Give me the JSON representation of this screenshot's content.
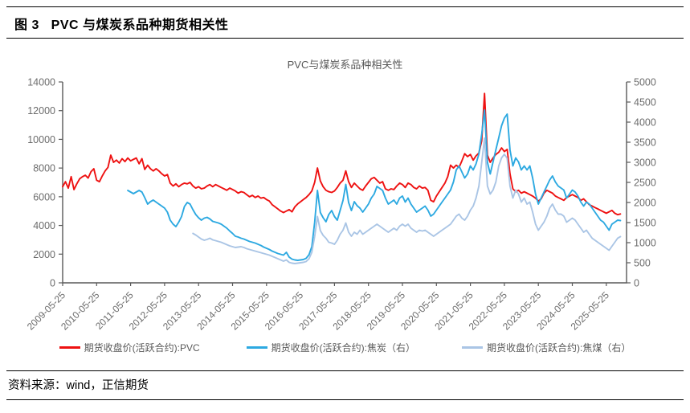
{
  "page": {
    "header_title": "图 3   PVC 与煤炭系品种期货相关性",
    "source_label": "资料来源：wind，正信期货"
  },
  "chart_data": {
    "type": "line",
    "title": "PVC与煤炭系品种相关性",
    "grid": false,
    "legend_position": "bottom",
    "x_ticks": [
      "2009-05-25",
      "2010-05-25",
      "2011-05-25",
      "2012-05-25",
      "2013-05-25",
      "2014-05-25",
      "2015-05-25",
      "2016-05-25",
      "2017-05-25",
      "2018-05-25",
      "2019-05-25",
      "2020-05-25",
      "2021-05-25",
      "2022-05-25",
      "2023-05-25",
      "2024-05-25",
      "2025-05-25"
    ],
    "left_axis": {
      "min": 0,
      "max": 14000,
      "step": 2000
    },
    "right_axis": {
      "min": 0,
      "max": 5000,
      "step": 500
    },
    "colors": {
      "pvc": "#ee1111",
      "coke": "#2da9e1",
      "coking_coal": "#aac5e5",
      "axis": "#595959",
      "tick_text": "#6b6b6b"
    },
    "series": [
      {
        "name": "期货收盘价(活跃合约):PVC",
        "axis": "left",
        "color": "#ee1111",
        "start": "2009-05",
        "frequency": "monthly",
        "values": [
          6700,
          7050,
          6600,
          7400,
          6500,
          6900,
          7250,
          7400,
          7500,
          7300,
          7750,
          7950,
          7150,
          7050,
          7450,
          7800,
          8050,
          8900,
          8400,
          8550,
          8350,
          8650,
          8450,
          8700,
          8500,
          8600,
          8700,
          8300,
          8650,
          7900,
          8200,
          7950,
          7800,
          7950,
          7800,
          7600,
          7450,
          7550,
          6950,
          6750,
          6900,
          6700,
          6850,
          6950,
          6900,
          7000,
          6750,
          6600,
          6700,
          6550,
          6600,
          6750,
          6850,
          6700,
          6850,
          6750,
          6650,
          6550,
          6450,
          6600,
          6500,
          6400,
          6250,
          6350,
          6300,
          6150,
          6000,
          6100,
          5950,
          6050,
          5900,
          5950,
          5800,
          5700,
          5450,
          5300,
          5150,
          5000,
          4900,
          5000,
          5100,
          4950,
          5300,
          5500,
          5650,
          5800,
          5950,
          6150,
          6400,
          7000,
          8000,
          7100,
          6700,
          6450,
          6350,
          6300,
          6400,
          6650,
          6950,
          7150,
          7800,
          7050,
          6650,
          6950,
          6750,
          6550,
          6450,
          6750,
          7000,
          7250,
          7350,
          7150,
          6950,
          7050,
          6550,
          6450,
          6550,
          6500,
          6750,
          6950,
          6850,
          6650,
          6950,
          6850,
          6650,
          6550,
          6750,
          6600,
          6650,
          6450,
          5750,
          5650,
          6050,
          6350,
          6650,
          6950,
          7400,
          8200,
          8000,
          8200,
          8050,
          8500,
          9000,
          8800,
          8950,
          8550,
          8850,
          9050,
          9900,
          13200,
          8900,
          8400,
          8700,
          8950,
          9100,
          9400,
          9150,
          9300,
          7600,
          6550,
          6350,
          6450,
          6250,
          6350,
          6250,
          6150,
          6050,
          5900,
          5700,
          5850,
          6250,
          6450,
          6350,
          6250,
          6050,
          5950,
          5850,
          5750,
          5950,
          6050,
          6150,
          6050,
          5950,
          5750,
          5850,
          5650,
          5450,
          5350,
          5250,
          5150,
          5050,
          4950,
          4850,
          4950,
          5050,
          4850,
          4750,
          4800
        ]
      },
      {
        "name": "期货收盘价(活跃合约):焦炭（右）",
        "axis": "right",
        "color": "#2da9e1",
        "start": "2011-04",
        "frequency": "monthly",
        "values": [
          2300,
          2260,
          2220,
          2260,
          2300,
          2260,
          2120,
          1960,
          2020,
          2060,
          2010,
          1960,
          1910,
          1860,
          1760,
          1560,
          1460,
          1400,
          1510,
          1650,
          1900,
          2000,
          1960,
          1820,
          1700,
          1620,
          1560,
          1610,
          1630,
          1590,
          1530,
          1510,
          1490,
          1460,
          1410,
          1360,
          1290,
          1230,
          1160,
          1140,
          1110,
          1090,
          1060,
          1030,
          1010,
          990,
          960,
          930,
          890,
          860,
          830,
          790,
          760,
          730,
          710,
          690,
          760,
          640,
          590,
          570,
          560,
          570,
          580,
          610,
          700,
          900,
          1500,
          2300,
          1750,
          1620,
          1520,
          1700,
          1800,
          1650,
          1560,
          1800,
          2050,
          2450,
          2000,
          1800,
          2020,
          1920,
          1860,
          1760,
          1860,
          1960,
          2110,
          2210,
          2400,
          2350,
          2300,
          2110,
          1960,
          2010,
          2060,
          1960,
          2110,
          2160,
          2010,
          2110,
          1960,
          1860,
          1760,
          1810,
          1860,
          1910,
          1810,
          1660,
          1710,
          1810,
          1910,
          2010,
          2110,
          2210,
          2310,
          2510,
          2810,
          2910,
          2760,
          2610,
          2710,
          2910,
          2810,
          2960,
          3210,
          3700,
          4300,
          3000,
          2710,
          3010,
          3310,
          3610,
          3910,
          4100,
          4200,
          3310,
          2910,
          3110,
          3010,
          2810,
          2910,
          2810,
          2910,
          2610,
          2210,
          1960,
          2110,
          2260,
          2410,
          2560,
          2660,
          2510,
          2410,
          2360,
          2310,
          2110,
          2210,
          2310,
          2260,
          2160,
          2010,
          1910,
          2010,
          1960,
          1860,
          1760,
          1660,
          1560,
          1510,
          1410,
          1310,
          1460,
          1510,
          1560,
          1550
        ]
      },
      {
        "name": "期货收盘价(活跃合约):焦煤（右）",
        "axis": "right",
        "color": "#aac5e5",
        "start": "2013-03",
        "frequency": "monthly",
        "values": [
          1230,
          1190,
          1140,
          1090,
          1060,
          1080,
          1110,
          1070,
          1050,
          1030,
          1010,
          980,
          950,
          920,
          900,
          880,
          890,
          900,
          880,
          850,
          830,
          810,
          790,
          770,
          750,
          730,
          710,
          690,
          660,
          630,
          600,
          570,
          540,
          570,
          510,
          490,
          480,
          490,
          500,
          510,
          530,
          600,
          760,
          1150,
          1650,
          1300,
          1180,
          1110,
          1010,
          990,
          960,
          1060,
          1210,
          1310,
          1490,
          1260,
          1160,
          1260,
          1210,
          1310,
          1210,
          1260,
          1310,
          1360,
          1410,
          1460,
          1410,
          1360,
          1310,
          1260,
          1310,
          1360,
          1310,
          1410,
          1460,
          1410,
          1460,
          1360,
          1310,
          1260,
          1310,
          1290,
          1310,
          1260,
          1210,
          1160,
          1210,
          1260,
          1310,
          1360,
          1410,
          1460,
          1560,
          1660,
          1710,
          1610,
          1560,
          1660,
          1810,
          1910,
          2110,
          2410,
          3000,
          3600,
          2410,
          2210,
          2310,
          2510,
          2910,
          3110,
          3200,
          3100,
          2410,
          2110,
          2310,
          2210,
          2010,
          2110,
          1960,
          2010,
          1760,
          1460,
          1310,
          1410,
          1510,
          1660,
          1860,
          1960,
          1810,
          1710,
          1710,
          1660,
          1510,
          1560,
          1610,
          1560,
          1460,
          1360,
          1260,
          1310,
          1210,
          1110,
          1060,
          1010,
          960,
          910,
          860,
          810,
          910,
          1010,
          1110,
          1150
        ]
      }
    ]
  }
}
